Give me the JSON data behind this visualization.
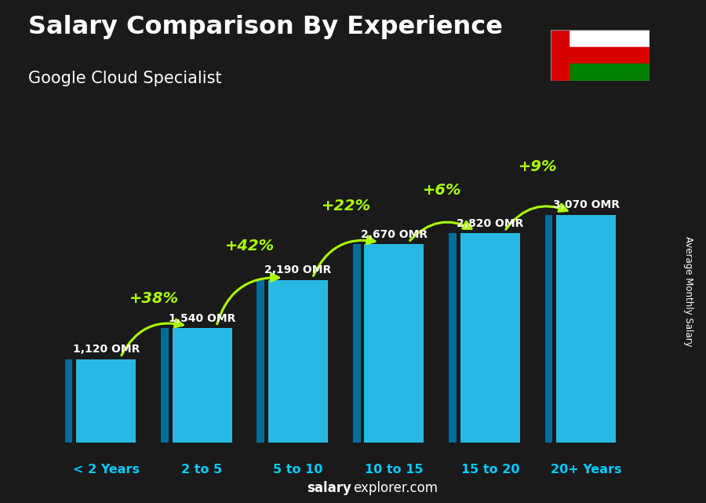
{
  "title": "Salary Comparison By Experience",
  "subtitle": "Google Cloud Specialist",
  "categories": [
    "< 2 Years",
    "2 to 5",
    "5 to 10",
    "10 to 15",
    "15 to 20",
    "20+ Years"
  ],
  "values": [
    1120,
    1540,
    2190,
    2670,
    2820,
    3070
  ],
  "value_labels": [
    "1,120 OMR",
    "1,540 OMR",
    "2,190 OMR",
    "2,670 OMR",
    "2,820 OMR",
    "3,070 OMR"
  ],
  "pct_changes": [
    "+38%",
    "+42%",
    "+22%",
    "+6%",
    "+9%"
  ],
  "bar_front_color": "#29c8f5",
  "bar_left_color": "#0077aa",
  "bar_top_color": "#55ddff",
  "bg_dark": "#1a1a1a",
  "title_color": "#ffffff",
  "subtitle_color": "#ffffff",
  "pct_color": "#aaff00",
  "value_label_color": "#ffffff",
  "xlabel_color": "#00ccff",
  "watermark_bold": "salary",
  "watermark_rest": "explorer.com",
  "ylabel_text": "Average Monthly Salary",
  "ylim_max": 4200,
  "flag_red": "#db0000",
  "flag_green": "#008000",
  "flag_white": "#ffffff"
}
